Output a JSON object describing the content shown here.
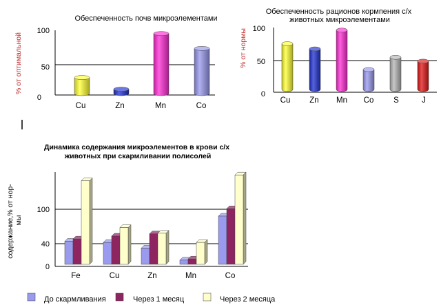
{
  "chart_data": [
    {
      "type": "bar",
      "title": "Обеспеченность почв микроэлементами",
      "ylabel": "% от оптимальной",
      "categories": [
        "Cu",
        "Zn",
        "Mn",
        "Co"
      ],
      "values": [
        27,
        9,
        95,
        72
      ],
      "colors": [
        "#ffff33",
        "#1f2fd0",
        "#ff2bd4",
        "#9797ee"
      ],
      "ylim": [
        0,
        100
      ],
      "yticks": [
        "0",
        "50",
        "100"
      ],
      "reference_line": 50
    },
    {
      "type": "bar",
      "title": "Обеспеченность рационов кормпения с/х животных микроэлементами",
      "ylabel": "% от нормы",
      "categories": [
        "Cu",
        "Zn",
        "Mn",
        "Co",
        "S",
        "J"
      ],
      "values": [
        75,
        67,
        96,
        35,
        54,
        48
      ],
      "colors": [
        "#ffff33",
        "#1f2fd0",
        "#ff2bd4",
        "#9797ee",
        "#b4b4b4",
        "#e01414"
      ],
      "ylim": [
        0,
        100
      ],
      "yticks": [
        "0",
        "50",
        "100"
      ],
      "reference_line": 50
    },
    {
      "type": "bar",
      "title": "Динамика содержания микроэлементов в крови с/х животных при скармливании полисолей",
      "ylabel": "содержание,% от нор-мы",
      "categories": [
        "Fe",
        "Cu",
        "Zn",
        "Mn",
        "Co"
      ],
      "series": [
        {
          "name": "До скармливания",
          "values": [
            44,
            42,
            32,
            11,
            88
          ],
          "color": "#9a9aee"
        },
        {
          "name": "Через 1 месяц",
          "values": [
            48,
            53,
            57,
            13,
            101
          ],
          "color": "#8e2460"
        },
        {
          "name": "Через 2 месяца",
          "values": [
            150,
            68,
            58,
            42,
            160
          ],
          "color": "#ffffcc"
        }
      ],
      "ylim": [
        0,
        160
      ],
      "yticks": [
        "0",
        "40",
        "100"
      ],
      "reference_lines": [
        40,
        100
      ]
    }
  ]
}
